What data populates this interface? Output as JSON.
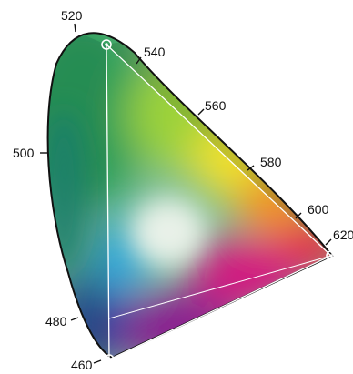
{
  "diagram": {
    "type": "chromaticity-diagram",
    "wavelength_labels": [
      "520",
      "540",
      "560",
      "580",
      "600",
      "620",
      "500",
      "480",
      "460"
    ],
    "primaries": [
      {
        "name": "green-primary",
        "near_wavelength": "540"
      },
      {
        "name": "red-primary",
        "near_wavelength": "620"
      },
      {
        "name": "blue-primary",
        "near_wavelength": "460"
      }
    ],
    "colors": {
      "locus_outline": "#111111",
      "gamut_triangle": "#ffffff",
      "green": "#2e9f5a",
      "yellow_green": "#9bd23a",
      "yellow": "#f2e12a",
      "orange": "#f7901e",
      "red": "#e8223a",
      "magenta": "#d4147f",
      "purple": "#8a1f8f",
      "blue": "#2d3f9e",
      "cyan": "#35a8d8",
      "white_point": "#eef3ec"
    }
  }
}
